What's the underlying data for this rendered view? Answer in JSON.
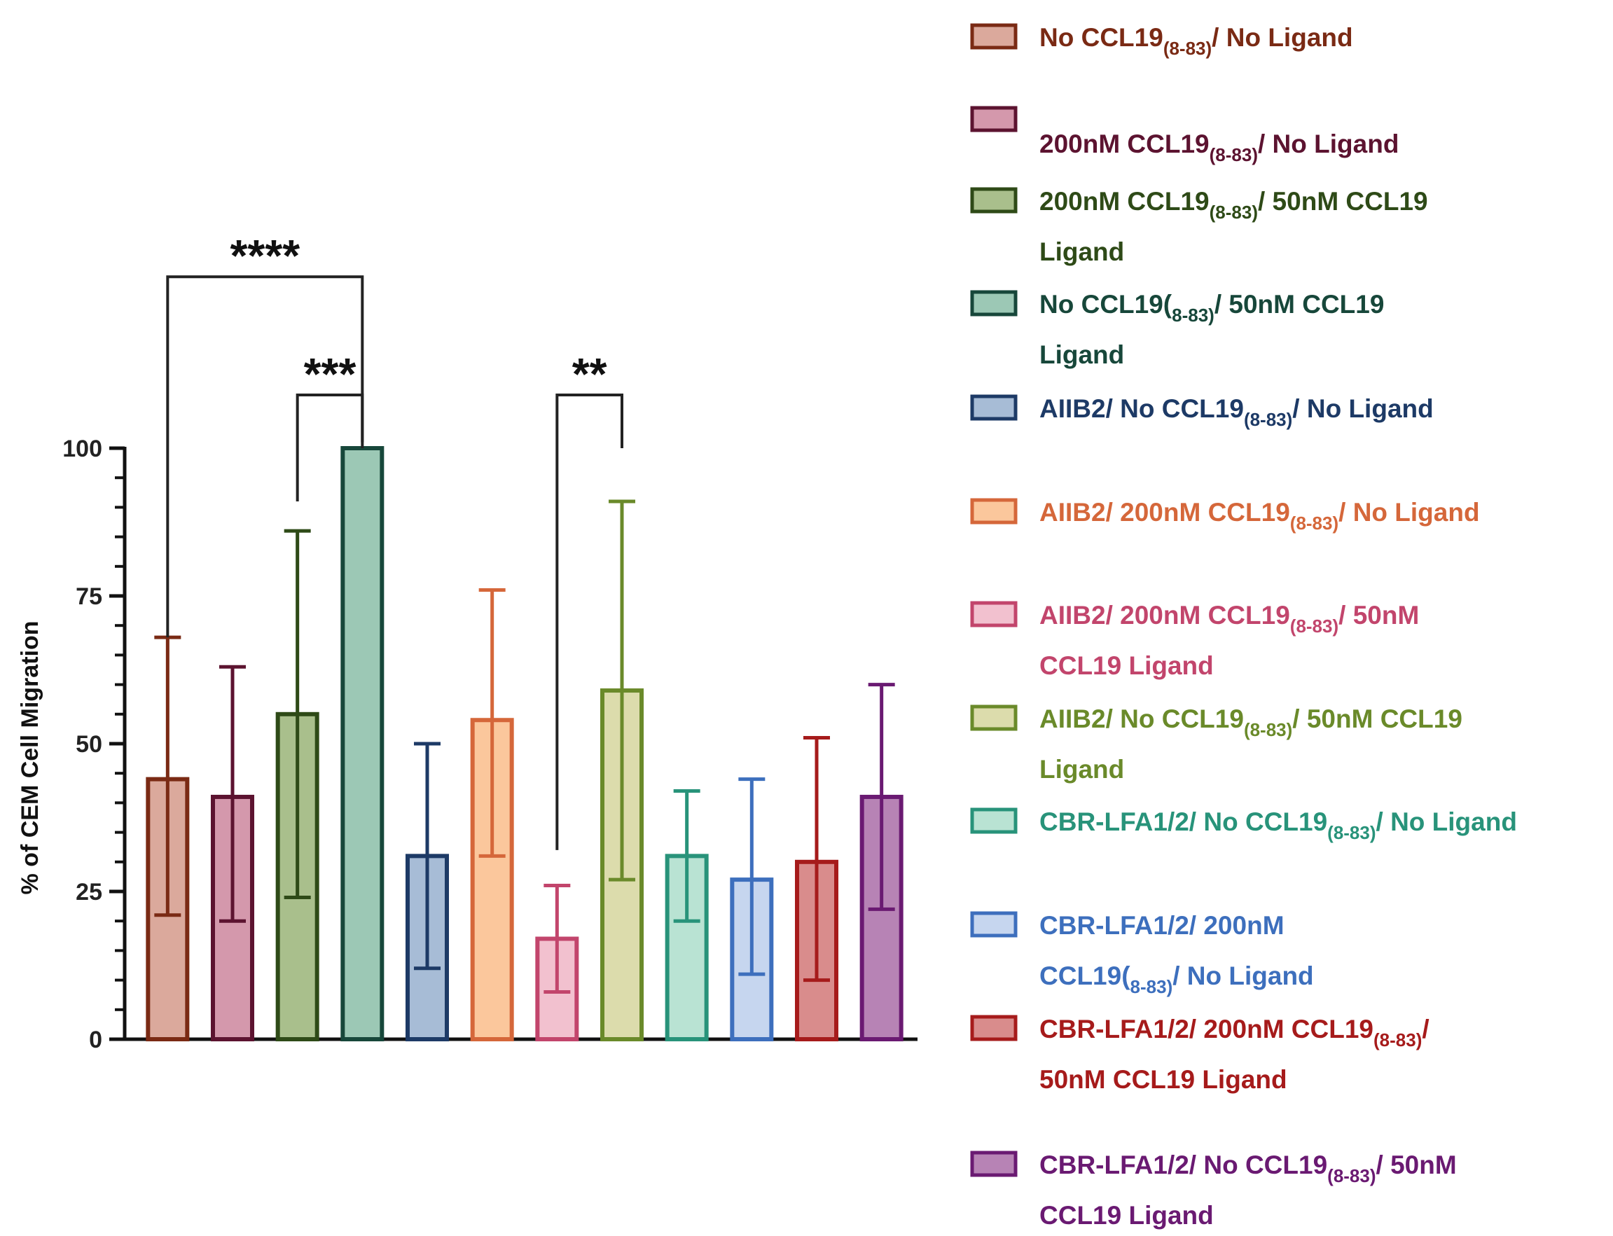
{
  "chart_data": {
    "type": "bar",
    "ylabel": "% of CEM Cell Migration",
    "xlabel": "",
    "ylim": [
      0,
      100
    ],
    "yticks": [
      "0",
      "25",
      "50",
      "75",
      "100"
    ],
    "grid": false,
    "legend_position": "right",
    "series": [
      {
        "name": "No CCL19(8-83)/ No Ligand",
        "value": 44,
        "err_low": 21,
        "err_high": 68,
        "fill": "#dba99c",
        "stroke": "#7a2a14",
        "legend_lines": [
          [
            {
              "t": "No CCL19"
            },
            {
              "t": "(8-83)",
              "sub": true
            },
            {
              "t": "/ No Ligand"
            }
          ]
        ]
      },
      {
        "name": "200nM CCL19(8-83)/ No Ligand",
        "value": 41,
        "err_low": 20,
        "err_high": 63,
        "fill": "#d498ac",
        "stroke": "#5c1330",
        "legend_lines": [
          [
            {
              "t": "200nM CCL19"
            },
            {
              "t": "(8-83)",
              "sub": true
            },
            {
              "t": "/ No Ligand"
            }
          ]
        ]
      },
      {
        "name": "200nM CCL19(8-83)/ 50nM CCL19 Ligand",
        "value": 55,
        "err_low": 24,
        "err_high": 86,
        "fill": "#a9bf8c",
        "stroke": "#2e4a17",
        "legend_lines": [
          [
            {
              "t": "200nM CCL19"
            },
            {
              "t": "(8-83)",
              "sub": true
            },
            {
              "t": "/ 50nM CCL19"
            }
          ],
          [
            {
              "t": "Ligand"
            }
          ]
        ]
      },
      {
        "name": "No CCL19(8-83)/ 50nM CCL19 Ligand",
        "value": 100,
        "err_low": 100,
        "err_high": 100,
        "fill": "#9cc8b5",
        "stroke": "#17473a",
        "legend_lines": [
          [
            {
              "t": "No CCL19("
            },
            {
              "t": "8-83)",
              "sub": true
            },
            {
              "t": "/ 50nM CCL19"
            }
          ],
          [
            {
              "t": "Ligand"
            }
          ]
        ]
      },
      {
        "name": "AIIB2/ No CCL19(8-83)/ No Ligand",
        "value": 31,
        "err_low": 12,
        "err_high": 50,
        "fill": "#a7bcd6",
        "stroke": "#1d3a66",
        "legend_lines": [
          [
            {
              "t": "AIIB2/ No CCL19"
            },
            {
              "t": "(8-83)",
              "sub": true
            },
            {
              "t": "/ No Ligand"
            }
          ]
        ]
      },
      {
        "name": "AIIB2/ 200nM CCL19(8-83)/ No Ligand",
        "value": 54,
        "err_low": 31,
        "err_high": 76,
        "fill": "#fbc79c",
        "stroke": "#d5673a",
        "legend_lines": [
          [
            {
              "t": "AIIB2/ 200nM CCL19"
            },
            {
              "t": "(8-83)",
              "sub": true
            },
            {
              "t": "/ No Ligand"
            }
          ]
        ]
      },
      {
        "name": "AIIB2/ 200nM CCL19(8-83)/ 50nM CCL19 Ligand",
        "value": 17,
        "err_low": 8,
        "err_high": 26,
        "fill": "#f2c1cf",
        "stroke": "#c2456c",
        "legend_lines": [
          [
            {
              "t": "AIIB2/ 200nM CCL19"
            },
            {
              "t": "(8-83)",
              "sub": true
            },
            {
              "t": "/ 50nM"
            }
          ],
          [
            {
              "t": "CCL19 Ligand"
            }
          ]
        ]
      },
      {
        "name": "AIIB2/ No CCL19(8-83)/ 50nM CCL19 Ligand",
        "value": 59,
        "err_low": 27,
        "err_high": 91,
        "fill": "#dcdcac",
        "stroke": "#6a8a2a",
        "legend_lines": [
          [
            {
              "t": "AIIB2/ No CCL19"
            },
            {
              "t": "(8-83)",
              "sub": true
            },
            {
              "t": "/ 50nM CCL19"
            }
          ],
          [
            {
              "t": "Ligand"
            }
          ]
        ]
      },
      {
        "name": "CBR-LFA1/2/ No CCL19(8-83)/ No Ligand",
        "value": 31,
        "err_low": 20,
        "err_high": 42,
        "fill": "#b9e3d3",
        "stroke": "#28937a",
        "legend_lines": [
          [
            {
              "t": "CBR-LFA1/2/ No CCL19"
            },
            {
              "t": "(8-83)",
              "sub": true
            },
            {
              "t": "/ No Ligand"
            }
          ]
        ]
      },
      {
        "name": "CBR-LFA1/2/ 200nM CCL19(8-83)/ No Ligand",
        "value": 27,
        "err_low": 11,
        "err_high": 44,
        "fill": "#c6d6ef",
        "stroke": "#3d6fbd",
        "legend_lines": [
          [
            {
              "t": "CBR-LFA1/2/ 200nM"
            }
          ],
          [
            {
              "t": "CCL19("
            },
            {
              "t": "8-83)",
              "sub": true
            },
            {
              "t": "/ No Ligand"
            }
          ]
        ]
      },
      {
        "name": "CBR-LFA1/2/ 200nM CCL19(8-83)/ 50nM CCL19 Ligand",
        "value": 30,
        "err_low": 10,
        "err_high": 51,
        "fill": "#d98c8c",
        "stroke": "#a61b1b",
        "legend_lines": [
          [
            {
              "t": "CBR-LFA1/2/ 200nM CCL19"
            },
            {
              "t": "(8-83)",
              "sub": true
            },
            {
              "t": "/"
            }
          ],
          [
            {
              "t": "50nM CCL19 Ligand"
            }
          ]
        ]
      },
      {
        "name": "CBR-LFA1/2/ No CCL19(8-83)/ 50nM CCL19 Ligand",
        "value": 41,
        "err_low": 22,
        "err_high": 60,
        "fill": "#b783b5",
        "stroke": "#6a1a72",
        "legend_lines": [
          [
            {
              "t": "CBR-LFA1/2/ No CCL19"
            },
            {
              "t": "(8-83)",
              "sub": true
            },
            {
              "t": "/ 50nM"
            }
          ],
          [
            {
              "t": "CCL19 Ligand"
            }
          ]
        ]
      }
    ],
    "significance": [
      {
        "from": 0,
        "to": 3,
        "label": "****",
        "left_start": 68,
        "right_start": 100,
        "top": 129
      },
      {
        "from": 2,
        "to": 3,
        "label": "***",
        "left_start": 91,
        "right_start": 101,
        "top": 109
      },
      {
        "from": 6,
        "to": 7,
        "label": "**",
        "left_start": 32,
        "right_start": 100,
        "top": 109
      }
    ]
  }
}
